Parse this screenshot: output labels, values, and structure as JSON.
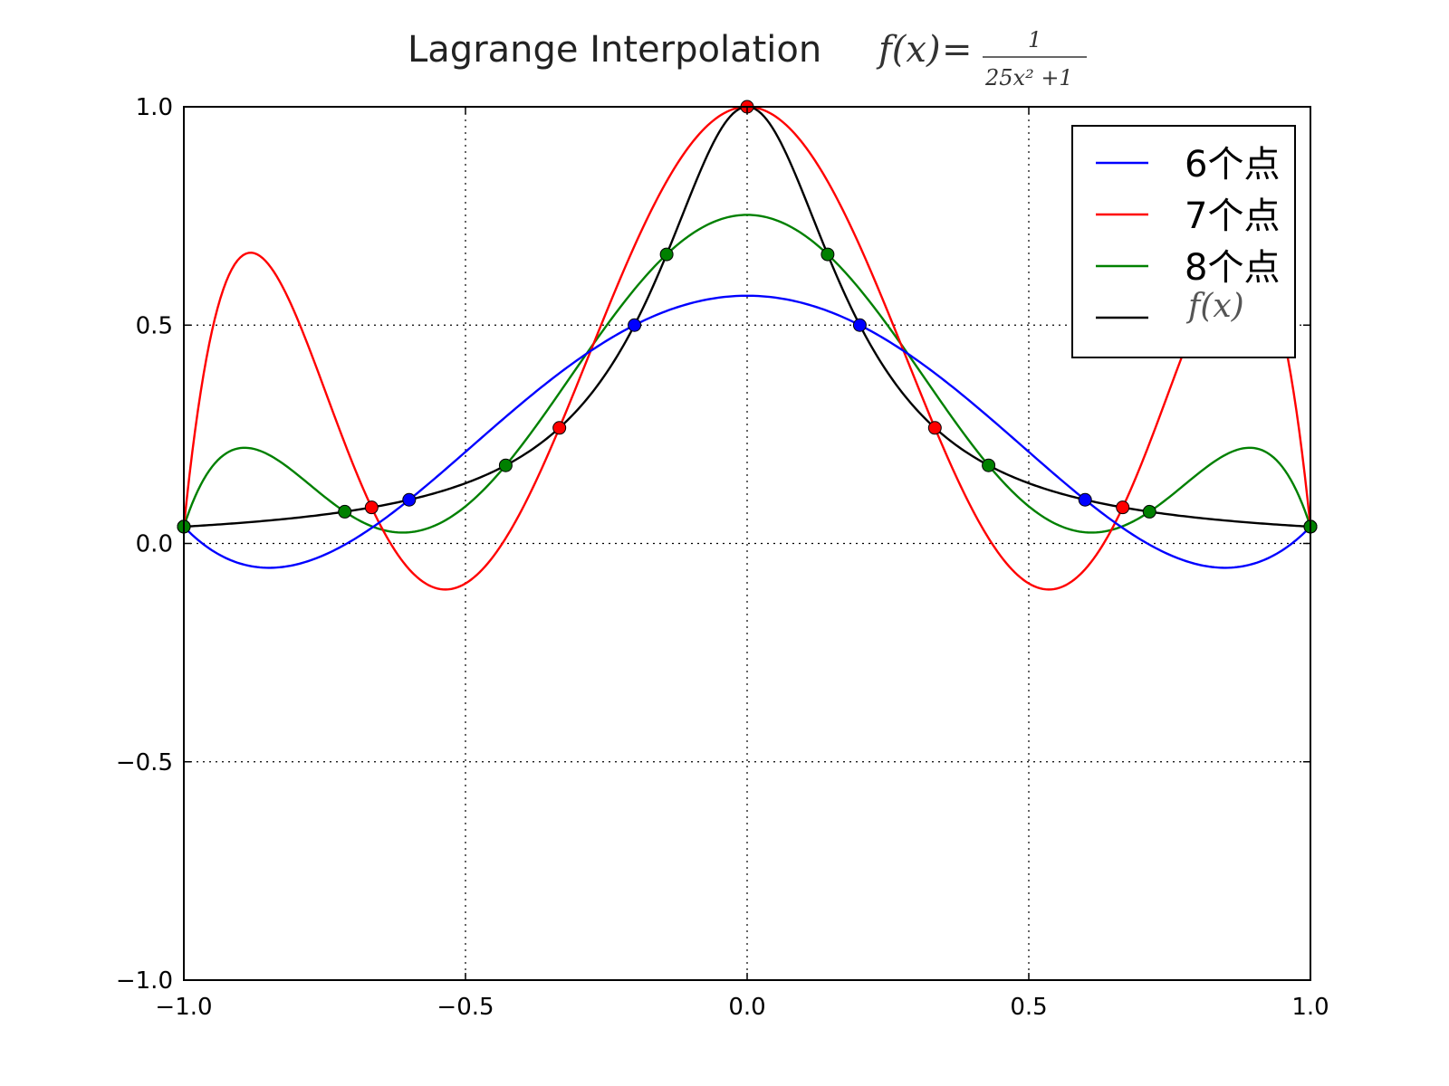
{
  "chart_data": {
    "type": "line",
    "title": "Lagrange Interpolation",
    "title_formula": {
      "lhs": "f(x)",
      "numerator": "1",
      "denominator": "25x² +1"
    },
    "xlim": [
      -1.0,
      1.0
    ],
    "ylim": [
      -1.0,
      1.0
    ],
    "xticks": [
      -1.0,
      -0.5,
      0.0,
      0.5,
      1.0
    ],
    "yticks": [
      -1.0,
      -0.5,
      0.0,
      0.5,
      1.0
    ],
    "xtick_labels": [
      "−1.0",
      "−0.5",
      "0.0",
      "0.5",
      "1.0"
    ],
    "ytick_labels": [
      "−1.0",
      "−0.5",
      "0.0",
      "0.5",
      "1.0"
    ],
    "grid": true,
    "legend_position": "top-right",
    "function": "1/(25x^2+1)",
    "series": [
      {
        "name": "6个点",
        "color": "#0000ff",
        "kind": "interpolant",
        "nodes_x": [
          -1.0,
          -0.6,
          -0.2,
          0.2,
          0.6,
          1.0
        ],
        "nodes_y": [
          0.0385,
          0.1,
          0.5,
          0.5,
          0.1,
          0.0385
        ]
      },
      {
        "name": "7个点",
        "color": "#ff0000",
        "kind": "interpolant",
        "nodes_x": [
          -1.0,
          -0.6667,
          -0.3333,
          0.0,
          0.3333,
          0.6667,
          1.0
        ],
        "nodes_y": [
          0.0385,
          0.0826,
          0.2647,
          1.0,
          0.2647,
          0.0826,
          0.0385
        ]
      },
      {
        "name": "8个点",
        "color": "#008000",
        "kind": "interpolant",
        "nodes_x": [
          -1.0,
          -0.7143,
          -0.4286,
          -0.1429,
          0.1429,
          0.4286,
          0.7143,
          1.0
        ],
        "nodes_y": [
          0.0385,
          0.0727,
          0.1788,
          0.662,
          0.662,
          0.1788,
          0.0727,
          0.0385
        ]
      },
      {
        "name": "f(x)",
        "color": "#000000",
        "kind": "function"
      }
    ]
  }
}
